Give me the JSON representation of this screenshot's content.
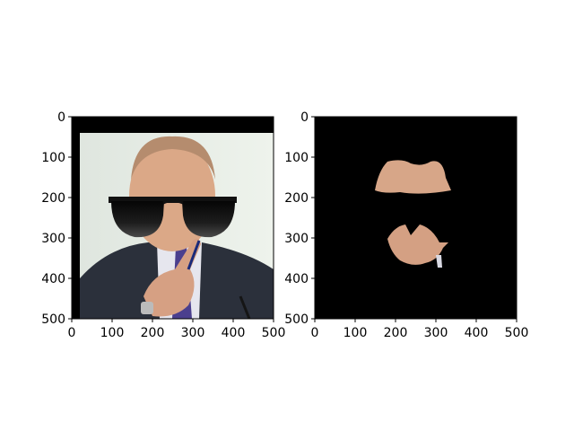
{
  "chart_data": [
    {
      "type": "image",
      "content": "photo of a man in a dark suit, white shirt and purple tie, wearing large black sunglasses, pointing a finger; black border band along the top and left edges",
      "x_ticks": [
        0,
        100,
        200,
        300,
        400,
        500
      ],
      "y_ticks": [
        0,
        100,
        200,
        300,
        400,
        500
      ],
      "xlim": [
        0,
        500
      ],
      "ylim": [
        500,
        0
      ],
      "xlabel": "",
      "ylabel": "",
      "title": ""
    },
    {
      "type": "image",
      "content": "black mask image with only two isolated skin regions visible: forehead/hair area above the glasses and nose/mouth/chin area below",
      "x_ticks": [
        0,
        100,
        200,
        300,
        400,
        500
      ],
      "y_ticks": [
        0,
        100,
        200,
        300,
        400,
        500
      ],
      "xlim": [
        0,
        500
      ],
      "ylim": [
        500,
        0
      ],
      "xlabel": "",
      "ylabel": "",
      "title": ""
    }
  ],
  "colors": {
    "frame": "#000000",
    "background": "#ffffff",
    "mask": "#000000",
    "skin": "#d9a585",
    "suit": "#2a2f3a",
    "shirt": "#e7e7ef",
    "tie": "#4a3f8c",
    "photo_bg": "#e9efe7",
    "lens": "#151515"
  }
}
